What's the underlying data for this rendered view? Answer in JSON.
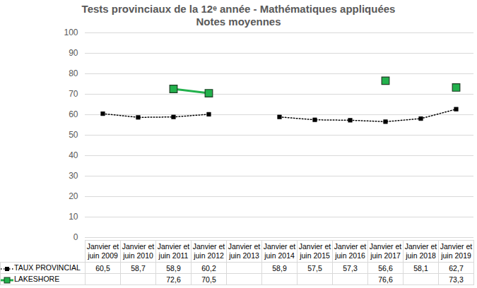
{
  "chart_data": {
    "type": "line",
    "title": "Tests provinciaux de la 12ᵉ année - Mathématiques appliquées",
    "subtitle": "Notes moyennes",
    "categories": [
      "Janvier et juin 2009",
      "Janvier et juin 2010",
      "Janvier et juin 2011",
      "Janvier et juin 2012",
      "Janvier et juin 2013",
      "Janvier et juin 2014",
      "Janvier et juin 2015",
      "Janvier et juin 2016",
      "Janvier et juin 2017",
      "Janvier et juin 2018",
      "Janvier et juin 2019"
    ],
    "series": [
      {
        "name": "TAUX PROVINCIAL",
        "color": "#000000",
        "marker": "square",
        "line_style": "dotted",
        "values": [
          60.5,
          58.7,
          58.9,
          60.2,
          null,
          58.9,
          57.5,
          57.3,
          56.6,
          58.1,
          62.7
        ],
        "value_labels": [
          "60,5",
          "58,7",
          "58,9",
          "60,2",
          null,
          "58,9",
          "57,5",
          "57,3",
          "56,6",
          "58,1",
          "62,7"
        ]
      },
      {
        "name": "LAKESHORE",
        "color": "#22b14c",
        "marker": "square",
        "line_style": "solid",
        "values": [
          null,
          null,
          72.6,
          70.5,
          null,
          null,
          null,
          null,
          76.6,
          null,
          73.3
        ],
        "value_labels": [
          null,
          null,
          "72,6",
          "70,5",
          null,
          null,
          null,
          null,
          "76,6",
          null,
          "73,3"
        ]
      }
    ],
    "ylim": [
      0,
      100
    ],
    "yticks": [
      0,
      10,
      20,
      30,
      40,
      50,
      60,
      70,
      80,
      90,
      100
    ],
    "grid": true
  }
}
